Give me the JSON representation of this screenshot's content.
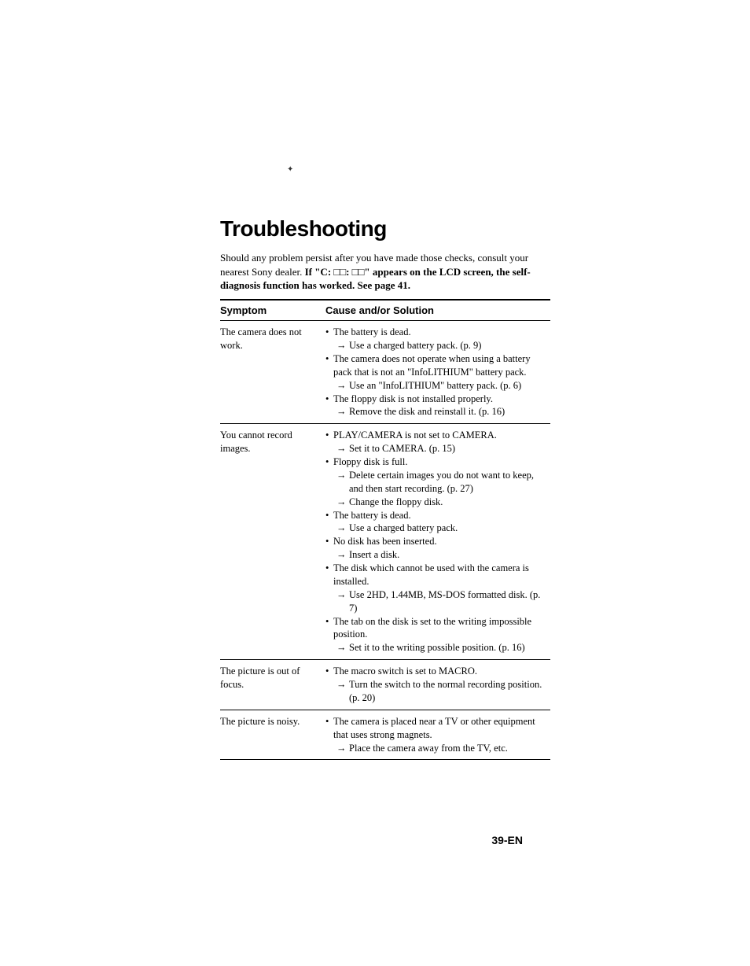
{
  "page": {
    "title": "Troubleshooting",
    "intro_part1": "Should any problem persist after you have made those checks, consult your nearest Sony dealer. ",
    "intro_bold": "If \"C: □□: □□\" appears on the LCD screen, the self-diagnosis function has worked. See page 41.",
    "page_number": "39-EN"
  },
  "table": {
    "headers": {
      "symptom": "Symptom",
      "cause": "Cause and/or Solution"
    },
    "rows": [
      {
        "symptom": "The camera does not work.",
        "items": [
          {
            "type": "bullet",
            "text": "The battery is dead."
          },
          {
            "type": "arrow",
            "text": "Use a charged battery pack. (p. 9)"
          },
          {
            "type": "bullet",
            "text": "The camera does not operate when using a battery pack that is not an \"InfoLITHIUM\" battery pack."
          },
          {
            "type": "arrow",
            "text": "Use an \"InfoLITHIUM\" battery pack. (p. 6)"
          },
          {
            "type": "bullet",
            "text": "The floppy disk is not installed properly."
          },
          {
            "type": "arrow",
            "text": "Remove the disk and reinstall it. (p. 16)"
          }
        ]
      },
      {
        "symptom": "You cannot record images.",
        "items": [
          {
            "type": "bullet",
            "text": "PLAY/CAMERA is not set to CAMERA."
          },
          {
            "type": "arrow",
            "text": "Set it to CAMERA. (p. 15)"
          },
          {
            "type": "bullet",
            "text": "Floppy disk is full."
          },
          {
            "type": "arrow",
            "text": "Delete certain images you do not want to keep, and then start recording. (p. 27)"
          },
          {
            "type": "arrow",
            "text": "Change the floppy disk."
          },
          {
            "type": "bullet",
            "text": "The battery is dead."
          },
          {
            "type": "arrow",
            "text": "Use a charged battery pack."
          },
          {
            "type": "bullet",
            "text": "No disk has been inserted."
          },
          {
            "type": "arrow",
            "text": "Insert a disk."
          },
          {
            "type": "bullet",
            "text": "The disk which cannot be used with the camera is installed."
          },
          {
            "type": "arrow",
            "text": "Use 2HD, 1.44MB, MS-DOS formatted disk. (p. 7)"
          },
          {
            "type": "bullet",
            "text": "The tab on the disk is set to the writing impossible position."
          },
          {
            "type": "arrow",
            "text": "Set it to the writing possible position. (p. 16)"
          }
        ]
      },
      {
        "symptom": "The picture is out of focus.",
        "items": [
          {
            "type": "bullet",
            "text": "The macro switch is set to MACRO."
          },
          {
            "type": "arrow",
            "text": "Turn the switch to the normal recording position. (p. 20)"
          }
        ]
      },
      {
        "symptom": "The picture is noisy.",
        "items": [
          {
            "type": "bullet",
            "text": "The camera is placed near a TV or other equipment that uses strong magnets."
          },
          {
            "type": "arrow",
            "text": "Place the camera away from the TV, etc."
          }
        ]
      }
    ]
  }
}
